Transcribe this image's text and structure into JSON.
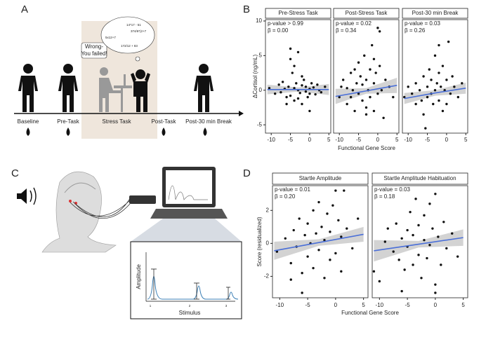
{
  "panel_labels": [
    "A",
    "B",
    "C",
    "D"
  ],
  "panel_a": {
    "timeline": [
      "Baseline",
      "Pre-Task",
      "Stress Task",
      "Post-Task",
      "Post-30 min Break"
    ],
    "speech": [
      "Wrong-",
      "You failed!"
    ],
    "thought": [
      "14*17 - 51",
      "374/6*(2+7",
      "5x12+7",
      "172/12 + 83"
    ]
  },
  "panel_c": {
    "inset_xlabel": "Stimulus",
    "inset_ylabel": "Amplitude",
    "inset_ticks": [
      "1",
      "2",
      "3"
    ]
  },
  "chart_data": [
    {
      "type": "scatter",
      "ylabel": "ΔCortisol (ng/mL)",
      "xlabel": "Functional Gene Score",
      "xlim": [
        -11.5,
        5.5
      ],
      "xticks": [
        -10,
        -5,
        0,
        5
      ],
      "ylim": [
        -6.2,
        10.2
      ],
      "yticks": [
        -5,
        0,
        5,
        10
      ],
      "point_color": "#111111",
      "fit_color": "#4a6fd8",
      "band_color": "#c8c8c8",
      "facets": [
        {
          "title": "Pre-Stress Task",
          "p": "p-value > 0.99",
          "beta": "β = 0.00",
          "points": [
            [
              -10.5,
              0.3
            ],
            [
              -9,
              -0.5
            ],
            [
              -8,
              0.8
            ],
            [
              -7.5,
              -0.3
            ],
            [
              -7,
              1.2
            ],
            [
              -6.5,
              0.2
            ],
            [
              -6,
              -1
            ],
            [
              -5.5,
              0.5
            ],
            [
              -5,
              4.5
            ],
            [
              -5,
              -0.8
            ],
            [
              -4.5,
              2.5
            ],
            [
              -4,
              0.3
            ],
            [
              -4,
              -1.5
            ],
            [
              -3.5,
              1
            ],
            [
              -3,
              0
            ],
            [
              -3,
              5.5
            ],
            [
              -2.5,
              -0.4
            ],
            [
              -2,
              0.7
            ],
            [
              -2,
              -2
            ],
            [
              -1.5,
              1.5
            ],
            [
              -1,
              -0.2
            ],
            [
              -1,
              0.5
            ],
            [
              -0.5,
              -1
            ],
            [
              0,
              0.2
            ],
            [
              0,
              -3
            ],
            [
              0.5,
              1
            ],
            [
              1,
              0.4
            ],
            [
              1.5,
              -0.6
            ],
            [
              2,
              0.8
            ],
            [
              2.5,
              0
            ],
            [
              3,
              -0.3
            ],
            [
              4,
              0.5
            ],
            [
              -5,
              6
            ],
            [
              -4,
              3.5
            ],
            [
              -3,
              -1.2
            ],
            [
              -6,
              -2
            ],
            [
              -2,
              2
            ],
            [
              0,
              -0.5
            ]
          ],
          "fit": {
            "x": [
              -11,
              -3,
              5
            ],
            "y": [
              0.1,
              0.1,
              0.1
            ],
            "lower": [
              -0.6,
              -0.2,
              -0.7
            ],
            "upper": [
              0.8,
              0.4,
              0.9
            ]
          }
        },
        {
          "title": "Post-Stress Task",
          "p": "p-value = 0.02",
          "beta": "β = 0.34",
          "points": [
            [
              -10,
              -1
            ],
            [
              -9.5,
              0.5
            ],
            [
              -9,
              1.5
            ],
            [
              -8,
              -2
            ],
            [
              -8,
              0.3
            ],
            [
              -7,
              2.5
            ],
            [
              -7,
              -1
            ],
            [
              -6.5,
              0
            ],
            [
              -6,
              3
            ],
            [
              -6,
              -3
            ],
            [
              -5.5,
              1
            ],
            [
              -5,
              -0.5
            ],
            [
              -5,
              4
            ],
            [
              -4.5,
              2
            ],
            [
              -4,
              -1.5
            ],
            [
              -4,
              0.8
            ],
            [
              -3.5,
              5
            ],
            [
              -3,
              -2.5
            ],
            [
              -3,
              1.5
            ],
            [
              -2.5,
              0
            ],
            [
              -2,
              3
            ],
            [
              -2,
              -1
            ],
            [
              -1.5,
              6.5
            ],
            [
              -1,
              1
            ],
            [
              -1,
              -3
            ],
            [
              -0.5,
              2.5
            ],
            [
              0,
              9
            ],
            [
              0,
              -0.5
            ],
            [
              0.5,
              8.5
            ],
            [
              0.5,
              3.5
            ],
            [
              1,
              0
            ],
            [
              1.5,
              -4
            ],
            [
              2,
              1.5
            ],
            [
              3,
              0.5
            ],
            [
              4,
              -1
            ],
            [
              -3,
              -3.5
            ],
            [
              -1,
              4.5
            ]
          ],
          "fit": {
            "x": [
              -11,
              -3,
              5
            ],
            "y": [
              -0.9,
              -0.1,
              0.7
            ],
            "lower": [
              -2,
              -0.5,
              -0.4
            ],
            "upper": [
              0.2,
              0.3,
              1.8
            ]
          }
        },
        {
          "title": "Post-30 min Break",
          "p": "p-value = 0.03",
          "beta": "β = 0.26",
          "points": [
            [
              -11,
              -1
            ],
            [
              -10,
              0.5
            ],
            [
              -9,
              -0.5
            ],
            [
              -8,
              -2
            ],
            [
              -8,
              1
            ],
            [
              -7,
              0
            ],
            [
              -6.5,
              -1.5
            ],
            [
              -6,
              2
            ],
            [
              -5.5,
              -5.5
            ],
            [
              -5,
              0.5
            ],
            [
              -5,
              -1
            ],
            [
              -4.5,
              3
            ],
            [
              -4,
              -0.5
            ],
            [
              -4,
              1.5
            ],
            [
              -3.5,
              -2
            ],
            [
              -3,
              0
            ],
            [
              -3,
              5
            ],
            [
              -2.5,
              1
            ],
            [
              -2,
              -1.5
            ],
            [
              -2,
              2.5
            ],
            [
              -1.5,
              0.5
            ],
            [
              -1,
              -3
            ],
            [
              -1,
              3.5
            ],
            [
              -0.5,
              0
            ],
            [
              0,
              -2
            ],
            [
              0,
              1.5
            ],
            [
              0.5,
              7
            ],
            [
              1,
              -0.5
            ],
            [
              1.5,
              2
            ],
            [
              2,
              0.5
            ],
            [
              3,
              -1
            ],
            [
              4,
              1
            ],
            [
              -2,
              6.5
            ],
            [
              -6,
              -3.5
            ]
          ],
          "fit": {
            "x": [
              -11,
              -3,
              5
            ],
            "y": [
              -1.2,
              -0.4,
              0.3
            ],
            "lower": [
              -2,
              -0.8,
              -0.5
            ],
            "upper": [
              -0.4,
              0,
              1.1
            ]
          }
        }
      ]
    },
    {
      "type": "scatter",
      "ylabel": "Score (residualized)",
      "xlabel": "Functional Gene Score",
      "xlim": [
        -11.3,
        5.8
      ],
      "xticks": [
        -10,
        -5,
        0,
        5
      ],
      "ylim": [
        -3.3,
        3.5
      ],
      "yticks": [
        -2,
        0,
        2
      ],
      "point_color": "#111111",
      "fit_color": "#4a6fd8",
      "band_color": "#c8c8c8",
      "facets": [
        {
          "title": "Startle Amplitude",
          "p": "p-value = 0.01",
          "beta": "β = 0.20",
          "points": [
            [
              -10.5,
              -0.5
            ],
            [
              -9,
              0.3
            ],
            [
              -8,
              -1.2
            ],
            [
              -7.5,
              0.8
            ],
            [
              -7,
              -0.2
            ],
            [
              -6.5,
              1.5
            ],
            [
              -6,
              -1.8
            ],
            [
              -5.5,
              0.5
            ],
            [
              -5,
              -0.8
            ],
            [
              -5,
              1.2
            ],
            [
              -4.5,
              0
            ],
            [
              -4,
              2
            ],
            [
              -4,
              -1.5
            ],
            [
              -3.5,
              0.6
            ],
            [
              -3,
              -0.4
            ],
            [
              -3,
              2.5
            ],
            [
              -2.5,
              1
            ],
            [
              -2,
              -2.1
            ],
            [
              -2,
              0.2
            ],
            [
              -1.5,
              1.8
            ],
            [
              -1,
              -1
            ],
            [
              -1,
              0.7
            ],
            [
              -0.5,
              2.3
            ],
            [
              0,
              3.2
            ],
            [
              0,
              -0.6
            ],
            [
              0.5,
              1.4
            ],
            [
              1,
              -1.7
            ],
            [
              1,
              0.4
            ],
            [
              1.5,
              3.2
            ],
            [
              2,
              0.9
            ],
            [
              3,
              -0.3
            ],
            [
              4,
              1.5
            ],
            [
              -6,
              -3
            ],
            [
              -8,
              -2.2
            ]
          ],
          "fit": {
            "x": [
              -11,
              -3,
              5
            ],
            "y": [
              -0.45,
              0.05,
              0.55
            ],
            "lower": [
              -1,
              -0.15,
              0.1
            ],
            "upper": [
              0.1,
              0.25,
              1
            ]
          }
        },
        {
          "title": "Startle Amplitude Habituation",
          "p": "p-value = 0.03",
          "beta": "β = 0.18",
          "points": [
            [
              -11,
              -1.7
            ],
            [
              -10,
              -2.3
            ],
            [
              -9,
              0.1
            ],
            [
              -8.5,
              0.9
            ],
            [
              -7.5,
              -0.5
            ],
            [
              -7,
              1.2
            ],
            [
              -6.5,
              -1
            ],
            [
              -6,
              0.3
            ],
            [
              -5.5,
              -1.6
            ],
            [
              -5,
              0.8
            ],
            [
              -5,
              -0.2
            ],
            [
              -4.5,
              1.9
            ],
            [
              -4,
              -1.3
            ],
            [
              -4,
              0.5
            ],
            [
              -3.5,
              2.7
            ],
            [
              -3,
              -0.7
            ],
            [
              -3,
              1.1
            ],
            [
              -2.5,
              -2.1
            ],
            [
              -2,
              0.2
            ],
            [
              -2,
              1.7
            ],
            [
              -1.5,
              -0.9
            ],
            [
              -1,
              2.4
            ],
            [
              -1,
              -0.1
            ],
            [
              -0.5,
              0.9
            ],
            [
              0,
              -2.5
            ],
            [
              0,
              3
            ],
            [
              0.5,
              0.4
            ],
            [
              1,
              -1.3
            ],
            [
              1.5,
              1.3
            ],
            [
              2,
              -0.3
            ],
            [
              3,
              0.6
            ],
            [
              4,
              -0.8
            ],
            [
              0,
              -3
            ],
            [
              -6,
              -2.9
            ]
          ],
          "fit": {
            "x": [
              -11,
              -3,
              5
            ],
            "y": [
              -0.45,
              -0.05,
              0.35
            ],
            "lower": [
              -1.1,
              -0.25,
              -0.15
            ],
            "upper": [
              0.2,
              0.15,
              0.85
            ]
          }
        }
      ]
    }
  ]
}
